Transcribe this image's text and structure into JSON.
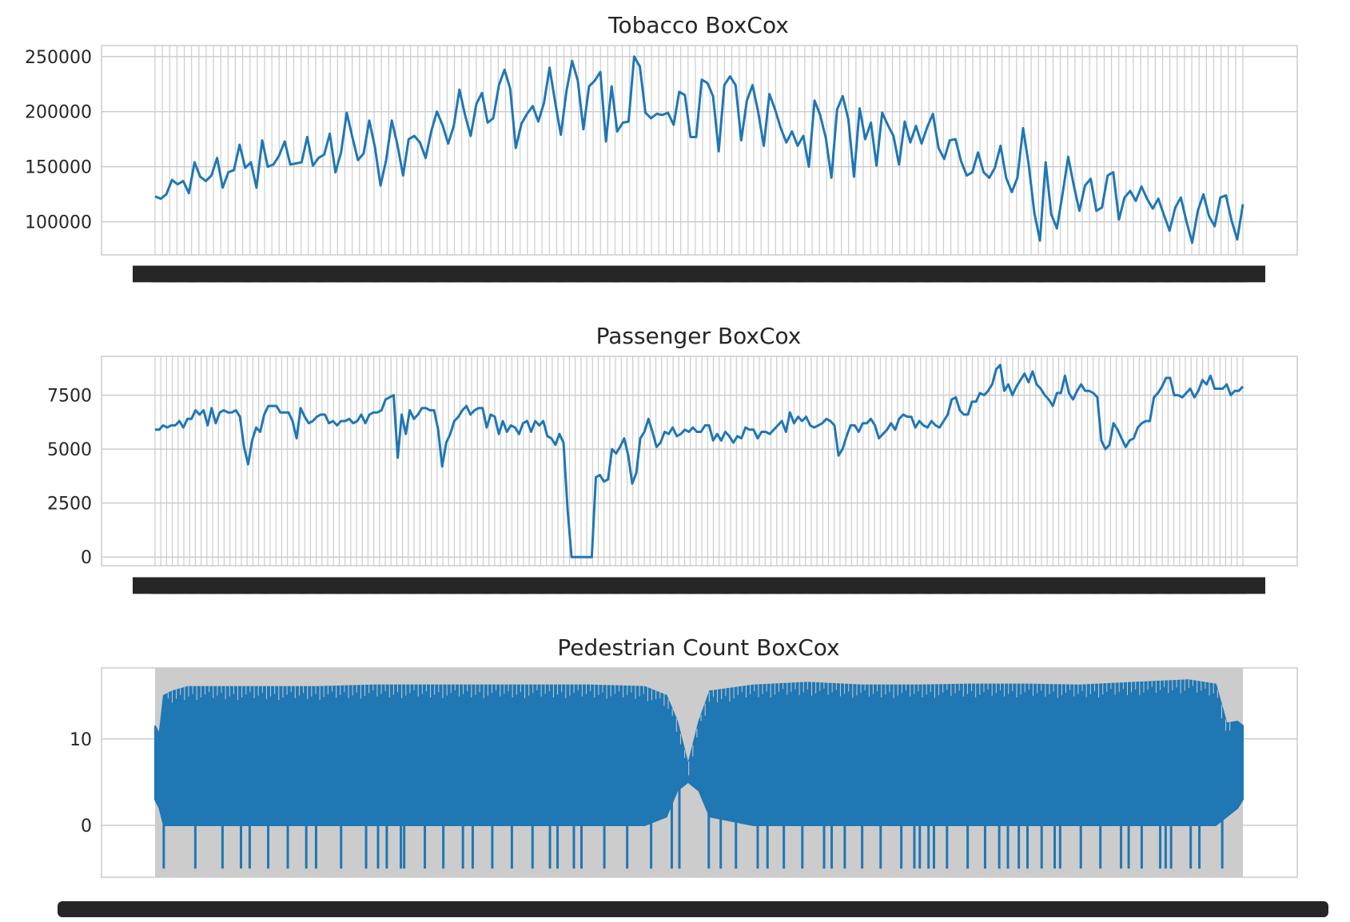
{
  "colors": {
    "line": "#1f77b4",
    "grid": "#cccccc",
    "background": "#ffffff",
    "text": "#262626"
  },
  "chart_data": [
    {
      "type": "line",
      "title": "Tobacco BoxCox",
      "ylim": [
        70000,
        260000
      ],
      "yticks": [
        100000,
        150000,
        200000,
        250000
      ],
      "ytick_labels": [
        "100000",
        "150000",
        "200000",
        "250000"
      ],
      "grid": true,
      "series": [
        {
          "values": [
            123000,
            121000,
            125000,
            138000,
            134000,
            137000,
            126000,
            154000,
            141000,
            137000,
            142000,
            158000,
            131000,
            145000,
            147000,
            170000,
            149000,
            154000,
            131000,
            174000,
            150000,
            152000,
            160000,
            173000,
            152000,
            153000,
            154000,
            177000,
            151000,
            158000,
            161000,
            180000,
            145000,
            163000,
            199000,
            177000,
            156000,
            162000,
            192000,
            168000,
            133000,
            156000,
            192000,
            170000,
            142000,
            175000,
            178000,
            172000,
            158000,
            182000,
            200000,
            188000,
            171000,
            187000,
            220000,
            197000,
            178000,
            207000,
            217000,
            190000,
            194000,
            224000,
            238000,
            221000,
            167000,
            189000,
            198000,
            205000,
            191000,
            208000,
            240000,
            208000,
            179000,
            219000,
            246000,
            228000,
            184000,
            223000,
            228000,
            236000,
            173000,
            223000,
            182000,
            190000,
            191000,
            250000,
            241000,
            199000,
            194000,
            198000,
            197000,
            199000,
            188000,
            218000,
            215000,
            177000,
            177000,
            229000,
            226000,
            214000,
            164000,
            224000,
            232000,
            224000,
            174000,
            210000,
            224000,
            200000,
            169000,
            216000,
            202000,
            185000,
            172000,
            182000,
            169000,
            178000,
            150000,
            210000,
            197000,
            176000,
            140000,
            202000,
            214000,
            193000,
            141000,
            203000,
            175000,
            190000,
            151000,
            199000,
            188000,
            178000,
            152000,
            191000,
            172000,
            187000,
            171000,
            186000,
            198000,
            167000,
            157000,
            174000,
            175000,
            155000,
            142000,
            145000,
            163000,
            145000,
            140000,
            149000,
            169000,
            140000,
            127000,
            140000,
            185000,
            152000,
            108000,
            83000,
            154000,
            107000,
            94000,
            125000,
            159000,
            133000,
            110000,
            133000,
            139000,
            110000,
            113000,
            142000,
            145000,
            102000,
            122000,
            128000,
            119000,
            132000,
            121000,
            112000,
            121000,
            106000,
            92000,
            113000,
            122000,
            100000,
            81000,
            110000,
            125000,
            105000,
            96000,
            122000,
            124000,
            101000,
            84000,
            116000
          ]
        }
      ]
    },
    {
      "type": "line",
      "title": "Passenger BoxCox",
      "ylim": [
        -400,
        9300
      ],
      "yticks": [
        0,
        2500,
        5000,
        7500
      ],
      "ytick_labels": [
        "0",
        "2500",
        "5000",
        "7500"
      ],
      "grid": true,
      "series": [
        {
          "values": [
            5900,
            5900,
            6100,
            6000,
            6100,
            6100,
            6300,
            6000,
            6400,
            6400,
            6800,
            6600,
            6800,
            6100,
            6900,
            6200,
            6700,
            6800,
            6700,
            6700,
            6800,
            6500,
            5100,
            4300,
            5400,
            6000,
            5800,
            6600,
            7000,
            7000,
            7000,
            6700,
            6700,
            6700,
            6300,
            5500,
            6900,
            6500,
            6200,
            6300,
            6500,
            6600,
            6600,
            6200,
            6300,
            6100,
            6300,
            6300,
            6400,
            6200,
            6300,
            6600,
            6200,
            6600,
            6700,
            6700,
            6800,
            7300,
            7400,
            7500,
            4600,
            6600,
            5700,
            6800,
            6400,
            6600,
            6900,
            6900,
            6800,
            6800,
            5900,
            4200,
            5300,
            5700,
            6300,
            6500,
            6800,
            7000,
            6600,
            6800,
            6900,
            6900,
            6000,
            6600,
            6500,
            5700,
            6300,
            5800,
            6100,
            6000,
            5700,
            6200,
            6300,
            5800,
            6300,
            6100,
            6300,
            5600,
            5500,
            5200,
            5700,
            5300,
            2200,
            0,
            0,
            0,
            0,
            0,
            0,
            3700,
            3800,
            3500,
            3600,
            5000,
            4800,
            5100,
            5500,
            4700,
            3400,
            3900,
            5500,
            5800,
            6400,
            5800,
            5100,
            5300,
            5800,
            5700,
            6000,
            5600,
            5700,
            5900,
            5800,
            6000,
            5800,
            5800,
            6100,
            6100,
            5400,
            5700,
            5400,
            5800,
            5600,
            5300,
            5600,
            5500,
            6000,
            5900,
            5900,
            5500,
            5800,
            5800,
            5700,
            5900,
            6100,
            6300,
            5800,
            6700,
            6200,
            6500,
            6300,
            6500,
            6100,
            6000,
            6100,
            6200,
            6400,
            6300,
            6100,
            4700,
            5000,
            5600,
            6100,
            6100,
            5800,
            6200,
            6200,
            6400,
            6100,
            5500,
            5700,
            5900,
            6200,
            5900,
            6400,
            6600,
            6500,
            6500,
            6000,
            6300,
            6100,
            6000,
            6300,
            6100,
            6000,
            6300,
            6600,
            7300,
            7400,
            6800,
            6600,
            6600,
            7200,
            7200,
            7600,
            7500,
            7700,
            8000,
            8700,
            8900,
            7700,
            8000,
            7500,
            7900,
            8200,
            8500,
            8100,
            8600,
            8000,
            7800,
            7500,
            7300,
            7000,
            7600,
            7600,
            8400,
            7600,
            7300,
            7700,
            8000,
            7700,
            7700,
            7600,
            7400,
            5400,
            5000,
            5200,
            6200,
            5900,
            5500,
            5100,
            5400,
            5500,
            6000,
            6200,
            6300,
            6300,
            7400,
            7600,
            7900,
            8300,
            8300,
            7500,
            7500,
            7400,
            7600,
            7800,
            7400,
            7700,
            8200,
            8000,
            8400,
            7800,
            7800,
            7800,
            8000,
            7500,
            7700,
            7700,
            7900
          ]
        }
      ]
    },
    {
      "type": "line",
      "title": "Pedestrian Count BoxCox",
      "ylim": [
        -6,
        18.2
      ],
      "yticks": [
        0,
        10
      ],
      "ytick_labels": [
        "0",
        "10"
      ],
      "grid": true,
      "series": [
        {
          "profile_x": [
            0,
            0.004,
            0.008,
            0.016,
            0.03,
            0.05,
            0.1,
            0.15,
            0.2,
            0.25,
            0.3,
            0.35,
            0.4,
            0.45,
            0.47,
            0.48,
            0.49,
            0.5,
            0.51,
            0.55,
            0.6,
            0.65,
            0.7,
            0.75,
            0.8,
            0.85,
            0.9,
            0.95,
            0.975,
            0.985,
            0.995,
            1
          ],
          "profile_max": [
            11.5,
            10.5,
            15,
            15.5,
            16,
            16,
            16,
            16,
            16.2,
            16.2,
            16.2,
            16.2,
            16.2,
            16,
            15,
            12,
            7,
            12,
            15.5,
            16.2,
            16.5,
            16.2,
            16.2,
            16.3,
            16.3,
            16.2,
            16.5,
            16.8,
            16.3,
            11.8,
            12,
            11.5
          ],
          "profile_min": [
            3,
            2,
            0,
            0,
            0,
            0,
            0,
            0,
            0,
            0,
            0,
            0,
            0,
            0,
            1,
            4,
            5,
            4,
            1,
            0,
            0,
            0,
            0,
            0,
            0,
            0,
            0,
            0,
            0,
            1,
            2,
            3
          ],
          "dip_value": -5,
          "dips": [
            0.008,
            0.037,
            0.062,
            0.079,
            0.087,
            0.104,
            0.122,
            0.139,
            0.148,
            0.171,
            0.194,
            0.205,
            0.213,
            0.226,
            0.229,
            0.248,
            0.265,
            0.283,
            0.292,
            0.31,
            0.328,
            0.347,
            0.363,
            0.37,
            0.385,
            0.392,
            0.413,
            0.434,
            0.456,
            0.475,
            0.482,
            0.509,
            0.52,
            0.534,
            0.554,
            0.563,
            0.578,
            0.595,
            0.615,
            0.622,
            0.634,
            0.65,
            0.667,
            0.686,
            0.698,
            0.703,
            0.711,
            0.716,
            0.728,
            0.747,
            0.763,
            0.776,
            0.784,
            0.794,
            0.802,
            0.815,
            0.827,
            0.832,
            0.851,
            0.869,
            0.888,
            0.895,
            0.907,
            0.924,
            0.929,
            0.934,
            0.952,
            0.96,
            0.981
          ]
        }
      ]
    }
  ]
}
